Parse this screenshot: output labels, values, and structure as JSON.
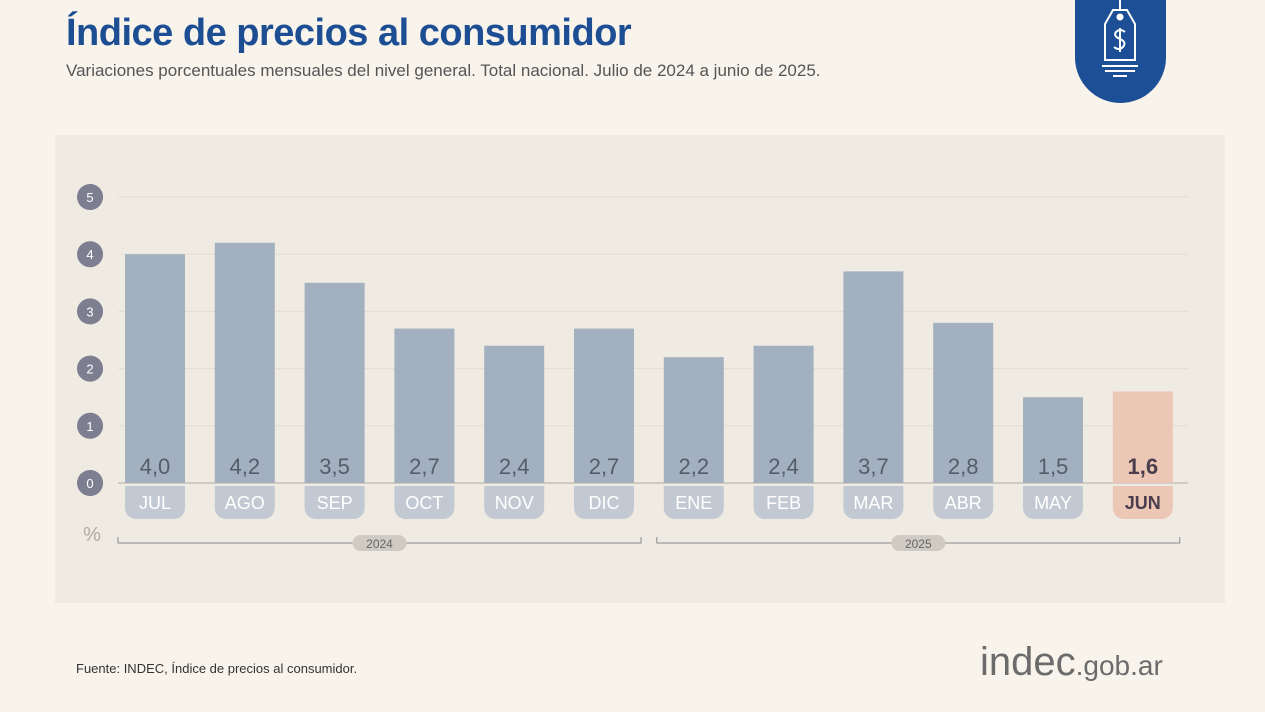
{
  "header": {
    "title": "Índice de precios al consumidor",
    "subtitle": "Variaciones porcentuales mensuales del nivel general. Total nacional. Julio de 2024 a junio de 2025."
  },
  "badge_icon": "price-tag-dollar-icon",
  "footer": {
    "source": "Fuente: INDEC, Índice de precios al consumidor.",
    "logo_main": "indec",
    "logo_suffix": ".gob.ar"
  },
  "colors": {
    "bar": "#a3b0c0",
    "highlight": "#ecc7b5",
    "brand": "#1c4f96"
  },
  "chart_data": {
    "type": "bar",
    "ylabel": "%",
    "ylim": [
      0,
      5
    ],
    "yticks": [
      "0",
      "1",
      "2",
      "3",
      "4",
      "5"
    ],
    "grid": true,
    "categories": [
      "JUL",
      "AGO",
      "SEP",
      "OCT",
      "NOV",
      "DIC",
      "ENE",
      "FEB",
      "MAR",
      "ABR",
      "MAY",
      "JUN"
    ],
    "values": [
      4.0,
      4.2,
      3.5,
      2.7,
      2.4,
      2.7,
      2.2,
      2.4,
      3.7,
      2.8,
      1.5,
      1.6
    ],
    "labels": [
      "4,0",
      "4,2",
      "3,5",
      "2,7",
      "2,4",
      "2,7",
      "2,2",
      "2,4",
      "3,7",
      "2,8",
      "1,5",
      "1,6"
    ],
    "highlight_index": 11,
    "year_groups": [
      {
        "label": "2024",
        "from": 0,
        "to": 5
      },
      {
        "label": "2025",
        "from": 6,
        "to": 11
      }
    ]
  }
}
